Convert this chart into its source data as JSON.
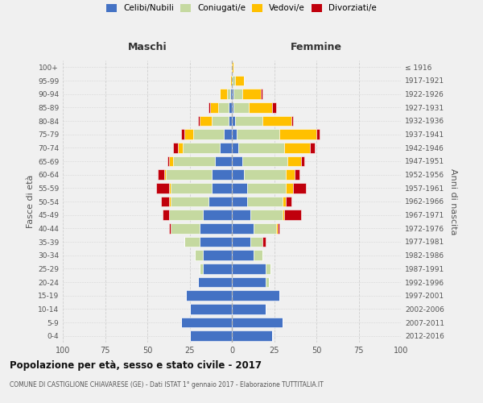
{
  "age_groups": [
    "100+",
    "95-99",
    "90-94",
    "85-89",
    "80-84",
    "75-79",
    "70-74",
    "65-69",
    "60-64",
    "55-59",
    "50-54",
    "45-49",
    "40-44",
    "35-39",
    "30-34",
    "25-29",
    "20-24",
    "15-19",
    "10-14",
    "5-9",
    "0-4"
  ],
  "birth_years": [
    "≤ 1916",
    "1917-1921",
    "1922-1926",
    "1927-1931",
    "1932-1936",
    "1937-1941",
    "1942-1946",
    "1947-1951",
    "1952-1956",
    "1957-1961",
    "1962-1966",
    "1967-1971",
    "1972-1976",
    "1977-1981",
    "1982-1986",
    "1987-1991",
    "1992-1996",
    "1997-2001",
    "2002-2006",
    "2007-2011",
    "2012-2016"
  ],
  "colors": {
    "celibi": "#4472C4",
    "coniugati": "#c5d9a0",
    "vedovi": "#ffc000",
    "divorziati": "#c0000c"
  },
  "maschi": {
    "celibi": [
      0,
      0,
      1,
      2,
      2,
      5,
      7,
      10,
      12,
      12,
      14,
      17,
      19,
      19,
      17,
      17,
      20,
      27,
      25,
      30,
      25
    ],
    "coniugati": [
      0,
      0,
      2,
      6,
      10,
      18,
      22,
      25,
      27,
      24,
      22,
      20,
      17,
      9,
      5,
      2,
      0,
      0,
      0,
      0,
      0
    ],
    "vedovi": [
      0,
      1,
      4,
      5,
      7,
      5,
      3,
      2,
      1,
      1,
      1,
      0,
      0,
      0,
      0,
      0,
      0,
      0,
      0,
      0,
      0
    ],
    "divorziati": [
      0,
      0,
      0,
      1,
      1,
      2,
      3,
      1,
      4,
      8,
      5,
      4,
      1,
      0,
      0,
      0,
      0,
      0,
      0,
      0,
      0
    ]
  },
  "femmine": {
    "celibi": [
      0,
      0,
      1,
      1,
      2,
      3,
      4,
      6,
      7,
      9,
      9,
      11,
      13,
      11,
      13,
      20,
      20,
      28,
      20,
      30,
      24
    ],
    "coniugati": [
      0,
      2,
      5,
      9,
      16,
      25,
      27,
      27,
      25,
      23,
      21,
      19,
      13,
      7,
      5,
      3,
      2,
      0,
      0,
      0,
      0
    ],
    "vedovi": [
      1,
      5,
      11,
      14,
      17,
      22,
      15,
      8,
      5,
      4,
      2,
      1,
      1,
      0,
      0,
      0,
      0,
      0,
      0,
      0,
      0
    ],
    "divorziati": [
      0,
      0,
      1,
      2,
      1,
      2,
      3,
      2,
      3,
      8,
      3,
      10,
      1,
      2,
      0,
      0,
      0,
      0,
      0,
      0,
      0
    ]
  },
  "title": "Popolazione per età, sesso e stato civile - 2017",
  "subtitle": "COMUNE DI CASTIGLIONE CHIAVARESE (GE) - Dati ISTAT 1° gennaio 2017 - Elaborazione TUTTITALIA.IT",
  "ylabel_left": "Fasce di età",
  "ylabel_right": "Anni di nascita",
  "xlabel_maschi": "Maschi",
  "xlabel_femmine": "Femmine",
  "xlim": 100,
  "bg_color": "#f0f0f0",
  "grid_color": "#cccccc",
  "bar_edge_color": "white"
}
